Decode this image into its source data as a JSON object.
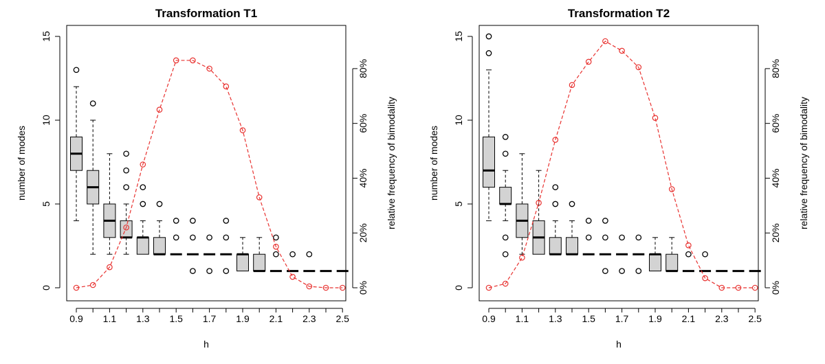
{
  "chart_data": [
    {
      "type": "boxplot+line",
      "title": "Transformation T1",
      "xlabel": "h",
      "ylabel": "number of modes",
      "y2label": "relative frequency of bimodality",
      "categories": [
        0.9,
        1.0,
        1.1,
        1.2,
        1.3,
        1.4,
        1.5,
        1.6,
        1.7,
        1.8,
        1.9,
        2.0,
        2.1,
        2.2,
        2.3,
        2.4,
        2.5
      ],
      "x_tick_labels": [
        "0.9",
        "1.1",
        "1.3",
        "1.5",
        "1.7",
        "1.9",
        "2.1",
        "2.3",
        "2.5"
      ],
      "ylim": [
        0,
        15
      ],
      "y_ticks": [
        "0",
        "5",
        "10",
        "15"
      ],
      "y2lim": [
        0,
        0.9
      ],
      "y2_ticks": [
        "0%",
        "20%",
        "40%",
        "60%",
        "80%"
      ],
      "boxes": [
        {
          "h": 0.9,
          "lo": 4,
          "q1": 7,
          "med": 8,
          "q3": 9,
          "hi": 12,
          "out": [
            13
          ]
        },
        {
          "h": 1.0,
          "lo": 2,
          "q1": 5,
          "med": 6,
          "q3": 7,
          "hi": 10,
          "out": [
            11
          ]
        },
        {
          "h": 1.1,
          "lo": 2,
          "q1": 3,
          "med": 4,
          "q3": 5,
          "hi": 8,
          "out": []
        },
        {
          "h": 1.2,
          "lo": 2,
          "q1": 3,
          "med": 3,
          "q3": 4,
          "hi": 5,
          "out": [
            6,
            7,
            8
          ]
        },
        {
          "h": 1.3,
          "lo": 2,
          "q1": 2,
          "med": 3,
          "q3": 3,
          "hi": 4,
          "out": [
            5,
            6
          ]
        },
        {
          "h": 1.4,
          "lo": 2,
          "q1": 2,
          "med": 2,
          "q3": 3,
          "hi": 4,
          "out": [
            5
          ]
        },
        {
          "h": 1.5,
          "lo": 2,
          "q1": 2,
          "med": 2,
          "q3": 2,
          "hi": 2,
          "out": [
            3,
            4
          ]
        },
        {
          "h": 1.6,
          "lo": 2,
          "q1": 2,
          "med": 2,
          "q3": 2,
          "hi": 2,
          "out": [
            1,
            3,
            4
          ]
        },
        {
          "h": 1.7,
          "lo": 2,
          "q1": 2,
          "med": 2,
          "q3": 2,
          "hi": 2,
          "out": [
            1,
            3
          ]
        },
        {
          "h": 1.8,
          "lo": 2,
          "q1": 2,
          "med": 2,
          "q3": 2,
          "hi": 2,
          "out": [
            1,
            3,
            4
          ]
        },
        {
          "h": 1.9,
          "lo": 1,
          "q1": 1,
          "med": 2,
          "q3": 2,
          "hi": 3,
          "out": []
        },
        {
          "h": 2.0,
          "lo": 1,
          "q1": 1,
          "med": 1,
          "q3": 2,
          "hi": 3,
          "out": []
        },
        {
          "h": 2.1,
          "lo": 1,
          "q1": 1,
          "med": 1,
          "q3": 1,
          "hi": 1,
          "out": [
            2,
            3
          ]
        },
        {
          "h": 2.2,
          "lo": 1,
          "q1": 1,
          "med": 1,
          "q3": 1,
          "hi": 1,
          "out": [
            2
          ]
        },
        {
          "h": 2.3,
          "lo": 1,
          "q1": 1,
          "med": 1,
          "q3": 1,
          "hi": 1,
          "out": [
            2
          ]
        },
        {
          "h": 2.4,
          "lo": 1,
          "q1": 1,
          "med": 1,
          "q3": 1,
          "hi": 1,
          "out": []
        },
        {
          "h": 2.5,
          "lo": 1,
          "q1": 1,
          "med": 1,
          "q3": 1,
          "hi": 1,
          "out": []
        }
      ],
      "bimodality": [
        0.0,
        0.01,
        0.075,
        0.22,
        0.45,
        0.65,
        0.83,
        0.83,
        0.8,
        0.735,
        0.575,
        0.33,
        0.15,
        0.04,
        0.005,
        0.0,
        0.0
      ],
      "colors": {
        "box": "#d3d3d3",
        "line": "#e8312f",
        "axis": "#000000"
      }
    },
    {
      "type": "boxplot+line",
      "title": "Transformation T2",
      "xlabel": "h",
      "ylabel": "number of modes",
      "y2label": "relative frequency of bimodality",
      "categories": [
        0.9,
        1.0,
        1.1,
        1.2,
        1.3,
        1.4,
        1.5,
        1.6,
        1.7,
        1.8,
        1.9,
        2.0,
        2.1,
        2.2,
        2.3,
        2.4,
        2.5
      ],
      "x_tick_labels": [
        "0.9",
        "1.1",
        "1.3",
        "1.5",
        "1.7",
        "1.9",
        "2.1",
        "2.3",
        "2.5"
      ],
      "ylim": [
        0,
        15
      ],
      "y_ticks": [
        "0",
        "5",
        "10",
        "15"
      ],
      "y2lim": [
        0,
        0.9
      ],
      "y2_ticks": [
        "0%",
        "20%",
        "40%",
        "60%",
        "80%"
      ],
      "boxes": [
        {
          "h": 0.9,
          "lo": 4,
          "q1": 6,
          "med": 7,
          "q3": 9,
          "hi": 13,
          "out": [
            14,
            15
          ]
        },
        {
          "h": 1.0,
          "lo": 4,
          "q1": 5,
          "med": 5,
          "q3": 6,
          "hi": 7,
          "out": [
            2,
            3,
            8,
            9
          ]
        },
        {
          "h": 1.1,
          "lo": 2,
          "q1": 3,
          "med": 4,
          "q3": 5,
          "hi": 8,
          "out": []
        },
        {
          "h": 1.2,
          "lo": 2,
          "q1": 2,
          "med": 3,
          "q3": 4,
          "hi": 7,
          "out": []
        },
        {
          "h": 1.3,
          "lo": 2,
          "q1": 2,
          "med": 2,
          "q3": 3,
          "hi": 4,
          "out": [
            5,
            6
          ]
        },
        {
          "h": 1.4,
          "lo": 2,
          "q1": 2,
          "med": 2,
          "q3": 3,
          "hi": 4,
          "out": [
            5
          ]
        },
        {
          "h": 1.5,
          "lo": 2,
          "q1": 2,
          "med": 2,
          "q3": 2,
          "hi": 2,
          "out": [
            3,
            4
          ]
        },
        {
          "h": 1.6,
          "lo": 2,
          "q1": 2,
          "med": 2,
          "q3": 2,
          "hi": 2,
          "out": [
            1,
            3,
            4
          ]
        },
        {
          "h": 1.7,
          "lo": 2,
          "q1": 2,
          "med": 2,
          "q3": 2,
          "hi": 2,
          "out": [
            1,
            3
          ]
        },
        {
          "h": 1.8,
          "lo": 2,
          "q1": 2,
          "med": 2,
          "q3": 2,
          "hi": 2,
          "out": [
            1,
            3
          ]
        },
        {
          "h": 1.9,
          "lo": 1,
          "q1": 1,
          "med": 2,
          "q3": 2,
          "hi": 3,
          "out": []
        },
        {
          "h": 2.0,
          "lo": 1,
          "q1": 1,
          "med": 1,
          "q3": 2,
          "hi": 3,
          "out": []
        },
        {
          "h": 2.1,
          "lo": 1,
          "q1": 1,
          "med": 1,
          "q3": 1,
          "hi": 1,
          "out": [
            2
          ]
        },
        {
          "h": 2.2,
          "lo": 1,
          "q1": 1,
          "med": 1,
          "q3": 1,
          "hi": 1,
          "out": [
            2
          ]
        },
        {
          "h": 2.3,
          "lo": 1,
          "q1": 1,
          "med": 1,
          "q3": 1,
          "hi": 1,
          "out": []
        },
        {
          "h": 2.4,
          "lo": 1,
          "q1": 1,
          "med": 1,
          "q3": 1,
          "hi": 1,
          "out": []
        },
        {
          "h": 2.5,
          "lo": 1,
          "q1": 1,
          "med": 1,
          "q3": 1,
          "hi": 1,
          "out": []
        }
      ],
      "bimodality": [
        0.0,
        0.015,
        0.11,
        0.31,
        0.54,
        0.74,
        0.825,
        0.9,
        0.865,
        0.805,
        0.62,
        0.36,
        0.155,
        0.035,
        0.0,
        0.0,
        0.0
      ],
      "colors": {
        "box": "#d3d3d3",
        "line": "#e8312f",
        "axis": "#000000"
      }
    }
  ]
}
